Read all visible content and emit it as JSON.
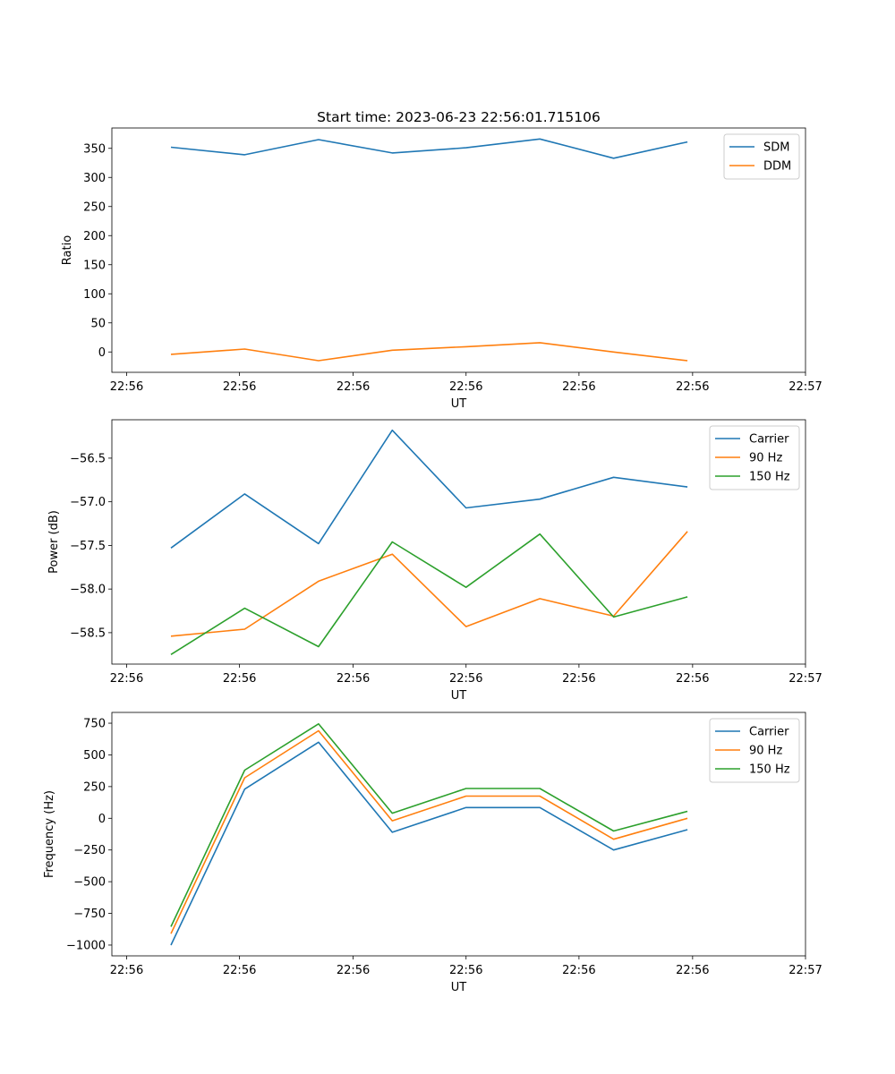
{
  "figure": {
    "title": "Start time: 2023-06-23 22:56:01.715106",
    "x_tick_labels": [
      "22:56",
      "22:56",
      "22:56",
      "22:56",
      "22:56",
      "22:56",
      "22:57"
    ]
  },
  "colors": {
    "blue": "#1f77b4",
    "orange": "#ff7f0e",
    "green": "#2ca02c"
  },
  "chart_data": [
    {
      "type": "line",
      "xlabel": "UT",
      "ylabel": "Ratio",
      "x_index": [
        1,
        2,
        3,
        4,
        5,
        6,
        7,
        8
      ],
      "xlim": [
        0.2,
        9.6
      ],
      "ylim": [
        -35,
        385
      ],
      "yticks": [
        0,
        50,
        100,
        150,
        200,
        250,
        300,
        350
      ],
      "ytick_labels": [
        "0",
        "50",
        "100",
        "150",
        "200",
        "250",
        "300",
        "350"
      ],
      "legend": "top-right",
      "series": [
        {
          "name": "SDM",
          "color": "#1f77b4",
          "values": [
            352,
            339,
            365,
            342,
            351,
            366,
            333,
            361
          ]
        },
        {
          "name": "DDM",
          "color": "#ff7f0e",
          "values": [
            -4,
            5,
            -15,
            3,
            9,
            16,
            0,
            -15
          ]
        }
      ]
    },
    {
      "type": "line",
      "xlabel": "UT",
      "ylabel": "Power (dB)",
      "x_index": [
        1,
        2,
        3,
        4,
        5,
        6,
        7,
        8
      ],
      "xlim": [
        0.2,
        9.6
      ],
      "ylim": [
        -58.86,
        -56.06
      ],
      "yticks": [
        -58.5,
        -58.0,
        -57.5,
        -57.0,
        -56.5
      ],
      "ytick_labels": [
        "−58.5",
        "−58.0",
        "−57.5",
        "−57.0",
        "−56.5"
      ],
      "legend": "top-right",
      "series": [
        {
          "name": "Carrier",
          "color": "#1f77b4",
          "values": [
            -57.53,
            -56.91,
            -57.48,
            -56.18,
            -57.07,
            -56.97,
            -56.72,
            -56.83
          ]
        },
        {
          "name": "90 Hz",
          "color": "#ff7f0e",
          "values": [
            -58.54,
            -58.46,
            -57.91,
            -57.6,
            -58.43,
            -58.11,
            -58.31,
            -57.34
          ]
        },
        {
          "name": "150 Hz",
          "color": "#2ca02c",
          "values": [
            -58.75,
            -58.22,
            -58.66,
            -57.46,
            -57.98,
            -57.37,
            -58.32,
            -58.09
          ]
        }
      ]
    },
    {
      "type": "line",
      "xlabel": "UT",
      "ylabel": "Frequency (Hz)",
      "x_index": [
        1,
        2,
        3,
        4,
        5,
        6,
        7,
        8
      ],
      "xlim": [
        0.2,
        9.6
      ],
      "ylim": [
        -1085,
        835
      ],
      "yticks": [
        -1000,
        -750,
        -500,
        -250,
        0,
        250,
        500,
        750
      ],
      "ytick_labels": [
        "−1000",
        "−750",
        "−500",
        "−250",
        "0",
        "250",
        "500",
        "750"
      ],
      "legend": "top-right",
      "series": [
        {
          "name": "Carrier",
          "color": "#1f77b4",
          "values": [
            -1000,
            230,
            600,
            -110,
            85,
            85,
            -250,
            -90
          ]
        },
        {
          "name": "90 Hz",
          "color": "#ff7f0e",
          "values": [
            -910,
            320,
            690,
            -20,
            175,
            175,
            -165,
            0
          ]
        },
        {
          "name": "150 Hz",
          "color": "#2ca02c",
          "values": [
            -855,
            380,
            745,
            40,
            235,
            235,
            -100,
            55
          ]
        }
      ]
    }
  ]
}
